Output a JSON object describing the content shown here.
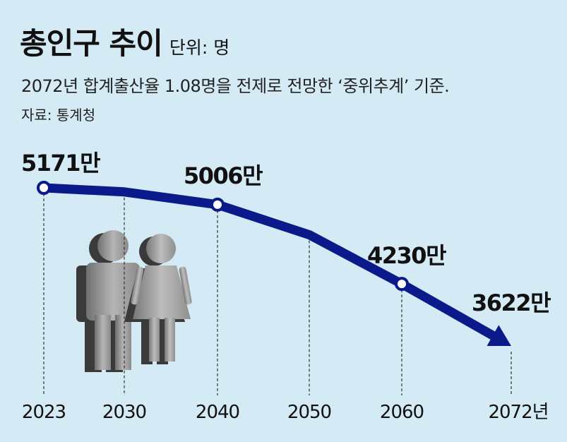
{
  "header": {
    "title": "총인구 추이",
    "unit": "단위: 명",
    "subtitle": "2072년 합계출산율 1.08명을 전제로 전망한 ‘중위추계’ 기준.",
    "source": "자료: 통계청"
  },
  "chart_data": {
    "type": "line",
    "x_labels": [
      "2023",
      "2030",
      "2040",
      "2050",
      "2060",
      "2072년"
    ],
    "x": [
      2023,
      2030,
      2040,
      2050,
      2060,
      2072
    ],
    "values": [
      5171,
      5131,
      5006,
      4711,
      4230,
      3622
    ],
    "labels": [
      "5171만",
      "",
      "5006만",
      "",
      "4230만",
      "3622만"
    ],
    "markers": [
      true,
      false,
      true,
      false,
      true,
      false
    ],
    "arrow_end": true,
    "line_color": "#0a1a8a",
    "background": "#d4eaf4",
    "grid": false
  }
}
